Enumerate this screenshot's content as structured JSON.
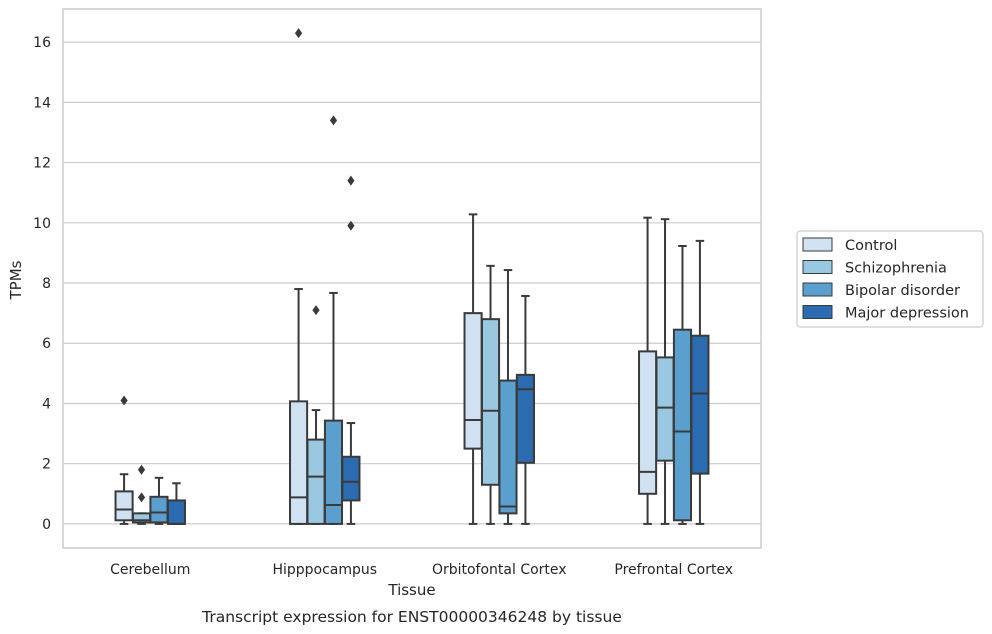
{
  "chart_data": {
    "type": "box",
    "caption": "Transcript expression for ENST00000346248 by tissue",
    "xlabel": "Tissue",
    "ylabel": "TPMs",
    "ylim": [
      -0.8,
      17.1
    ],
    "yticks": [
      0,
      2,
      4,
      6,
      8,
      10,
      12,
      14,
      16
    ],
    "grid": true,
    "legend_position": "right",
    "categories": [
      "Cerebellum",
      "Hipppocampus",
      "Orbitofontal Cortex",
      "Prefrontal Cortex"
    ],
    "series": [
      {
        "name": "Control",
        "color": "#d0e1f2",
        "boxes": [
          {
            "whislo": 0.0,
            "q1": 0.12,
            "med": 0.48,
            "q3": 1.08,
            "whishi": 1.65,
            "fliers": [
              4.1
            ]
          },
          {
            "whislo": 0.0,
            "q1": 0.0,
            "med": 0.88,
            "q3": 4.07,
            "whishi": 7.8,
            "fliers": [
              16.3
            ]
          },
          {
            "whislo": 0.0,
            "q1": 2.5,
            "med": 3.45,
            "q3": 7.0,
            "whishi": 10.28,
            "fliers": []
          },
          {
            "whislo": 0.0,
            "q1": 1.0,
            "med": 1.73,
            "q3": 5.73,
            "whishi": 10.17,
            "fliers": []
          }
        ]
      },
      {
        "name": "Schizophrenia",
        "color": "#9ac8e0",
        "boxes": [
          {
            "whislo": 0.0,
            "q1": 0.05,
            "med": 0.12,
            "q3": 0.35,
            "whishi": 0.35,
            "fliers": [
              1.8,
              0.88
            ]
          },
          {
            "whislo": 0.0,
            "q1": 0.0,
            "med": 1.57,
            "q3": 2.8,
            "whishi": 3.78,
            "fliers": [
              7.1
            ]
          },
          {
            "whislo": 0.0,
            "q1": 1.3,
            "med": 3.76,
            "q3": 6.8,
            "whishi": 8.57,
            "fliers": []
          },
          {
            "whislo": 0.0,
            "q1": 2.1,
            "med": 3.86,
            "q3": 5.53,
            "whishi": 10.12,
            "fliers": []
          }
        ]
      },
      {
        "name": "Bipolar disorder",
        "color": "#5a9fcd",
        "boxes": [
          {
            "whislo": 0.0,
            "q1": 0.05,
            "med": 0.38,
            "q3": 0.9,
            "whishi": 1.53,
            "fliers": []
          },
          {
            "whislo": 0.0,
            "q1": 0.0,
            "med": 0.63,
            "q3": 3.43,
            "whishi": 7.67,
            "fliers": [
              13.4
            ]
          },
          {
            "whislo": 0.0,
            "q1": 0.35,
            "med": 0.58,
            "q3": 4.76,
            "whishi": 8.43,
            "fliers": []
          },
          {
            "whislo": 0.0,
            "q1": 0.12,
            "med": 3.07,
            "q3": 6.45,
            "whishi": 9.23,
            "fliers": []
          }
        ]
      },
      {
        "name": "Major depression",
        "color": "#2b6cb0",
        "boxes": [
          {
            "whislo": 0.0,
            "q1": 0.0,
            "med": 0.0,
            "q3": 0.78,
            "whishi": 1.35,
            "fliers": []
          },
          {
            "whislo": 0.0,
            "q1": 0.78,
            "med": 1.4,
            "q3": 2.23,
            "whishi": 3.35,
            "fliers": [
              11.4,
              9.9
            ]
          },
          {
            "whislo": 0.0,
            "q1": 2.03,
            "med": 4.47,
            "q3": 4.95,
            "whishi": 7.57,
            "fliers": []
          },
          {
            "whislo": 0.0,
            "q1": 1.67,
            "med": 4.33,
            "q3": 6.25,
            "whishi": 9.4,
            "fliers": []
          }
        ]
      }
    ]
  }
}
